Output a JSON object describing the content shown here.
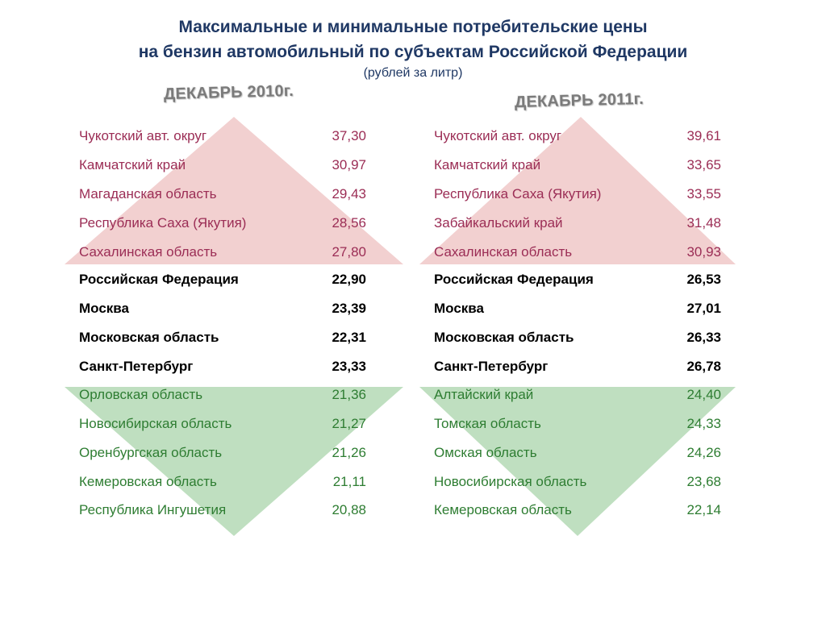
{
  "title_line1": "Максимальные и минимальные потребительские цены",
  "title_line2": "на бензин автомобильный по субъектам Российской Федерации",
  "subtitle": "(рублей за литр)",
  "panels": [
    {
      "period": "ДЕКАБРЬ 2010г.",
      "top": [
        {
          "region": "Чукотский авт. округ",
          "price": "37,30"
        },
        {
          "region": "Камчатский край",
          "price": "30,97"
        },
        {
          "region": "Магаданская область",
          "price": "29,43"
        },
        {
          "region": "Республика Саха (Якутия)",
          "price": "28,56"
        },
        {
          "region": "Сахалинская область",
          "price": "27,80"
        }
      ],
      "middle": [
        {
          "region": "Российская Федерация",
          "price": "22,90"
        },
        {
          "region": "Москва",
          "price": "23,39"
        },
        {
          "region": "Московская область",
          "price": "22,31"
        },
        {
          "region": "Санкт-Петербург",
          "price": "23,33"
        }
      ],
      "bottom": [
        {
          "region": "Орловская область",
          "price": "21,36"
        },
        {
          "region": "Новосибирская область",
          "price": "21,27"
        },
        {
          "region": "Оренбургская область",
          "price": "21,26"
        },
        {
          "region": "Кемеровская область",
          "price": "21,11"
        },
        {
          "region": "Республика Ингушетия",
          "price": "20,88"
        }
      ]
    },
    {
      "period": "ДЕКАБРЬ 2011г.",
      "top": [
        {
          "region": "Чукотский авт. округ",
          "price": "39,61"
        },
        {
          "region": "Камчатский край",
          "price": "33,65"
        },
        {
          "region": "Республика Саха (Якутия)",
          "price": "33,55"
        },
        {
          "region": "Забайкальский край",
          "price": "31,48"
        },
        {
          "region": "Сахалинская область",
          "price": "30,93"
        }
      ],
      "middle": [
        {
          "region": "Российская Федерация",
          "price": "26,53"
        },
        {
          "region": "Москва",
          "price": "27,01"
        },
        {
          "region": "Московская область",
          "price": "26,33"
        },
        {
          "region": "Санкт-Петербург",
          "price": "26,78"
        }
      ],
      "bottom": [
        {
          "region": "Алтайский край",
          "price": "24,40"
        },
        {
          "region": "Томская область",
          "price": "24,33"
        },
        {
          "region": "Омская область",
          "price": "24,26"
        },
        {
          "region": "Новосибирская область",
          "price": "23,68"
        },
        {
          "region": "Кемеровская область",
          "price": "22,14"
        }
      ]
    }
  ],
  "colors": {
    "title": "#1f3864",
    "top_text": "#9b2d55",
    "bottom_text": "#2e7d32",
    "up_triangle": "#f2d0d0",
    "down_triangle": "#bfdfc0"
  }
}
